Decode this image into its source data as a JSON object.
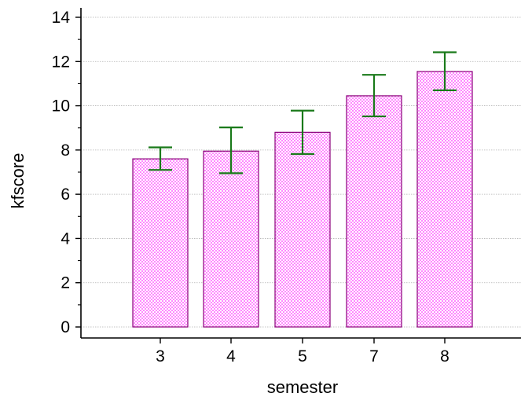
{
  "chart_data": {
    "type": "bar",
    "categories": [
      "3",
      "4",
      "5",
      "7",
      "8"
    ],
    "values": [
      7.6,
      7.95,
      8.8,
      10.45,
      11.55
    ],
    "error_low": [
      7.1,
      6.95,
      7.82,
      9.52,
      10.7
    ],
    "error_high": [
      8.12,
      9.02,
      9.78,
      11.4,
      12.42
    ],
    "xlabel": "semester",
    "ylabel": "kfscore",
    "ylim": [
      0,
      14
    ],
    "yticks": [
      0,
      2,
      4,
      6,
      8,
      10,
      12,
      14
    ],
    "grid": true,
    "colors": {
      "bar_fill": "#ff88ff",
      "bar_checker": "#ffffff",
      "bar_stroke": "#8a007a",
      "error_bar": "#1a7a1a",
      "grid": "#b0b0b0",
      "axis": "#000000"
    }
  }
}
